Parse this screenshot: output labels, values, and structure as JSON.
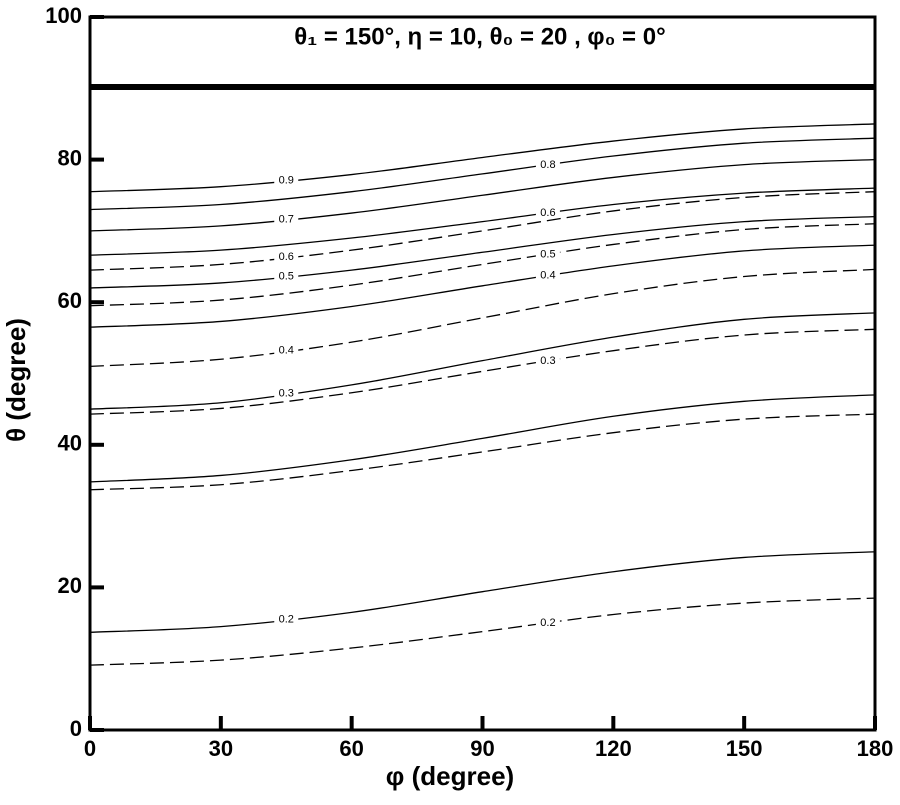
{
  "chart_data": {
    "type": "contour",
    "title": "θ₁ = 150°,  η = 10,  θ₀ = 20 ,  φ₀ = 0°",
    "x_label": "φ (degree)",
    "y_label": "θ (degree)",
    "xlim": [
      0,
      180
    ],
    "xticks": [
      0,
      30,
      60,
      90,
      120,
      150,
      180
    ],
    "ylim": [
      0,
      100
    ],
    "yticks": [
      0,
      20,
      40,
      60,
      80,
      100
    ],
    "x": [
      0,
      30,
      60,
      90,
      120,
      150,
      180
    ],
    "color": "#000000",
    "series": [
      {
        "level": 0.2,
        "style": "solid",
        "values": [
          13.7,
          14.5,
          16.5,
          19.4,
          22.2,
          24.2,
          25
        ]
      },
      {
        "style": "solid",
        "values": [
          34.8,
          35.7,
          37.9,
          40.9,
          44,
          46.1,
          47
        ]
      },
      {
        "level": 0.3,
        "style": "solid",
        "values": [
          45,
          45.9,
          48.4,
          51.8,
          55.1,
          57.6,
          58.5
        ]
      },
      {
        "level": 0.4,
        "style": "solid",
        "values": [
          56.5,
          57.3,
          59.4,
          62.3,
          65.1,
          67.2,
          68
        ]
      },
      {
        "level": 0.5,
        "style": "solid",
        "values": [
          62,
          62.7,
          64.5,
          67,
          69.5,
          71.3,
          72
        ]
      },
      {
        "level": 0.6,
        "style": "solid",
        "values": [
          66.6,
          67.3,
          69,
          71.3,
          73.7,
          75.3,
          76
        ]
      },
      {
        "level": 0.7,
        "style": "solid",
        "values": [
          70,
          70.7,
          72.5,
          75,
          77.5,
          79.3,
          80
        ]
      },
      {
        "level": 0.8,
        "style": "solid",
        "values": [
          73,
          73.7,
          75.5,
          78,
          80.5,
          82.3,
          83
        ]
      },
      {
        "level": 0.9,
        "style": "solid",
        "values": [
          75.5,
          76.2,
          77.9,
          80.3,
          82.6,
          84.3,
          85
        ]
      },
      {
        "level": 0.2,
        "style": "dashed",
        "values": [
          9.1,
          9.8,
          11.5,
          13.8,
          16.2,
          17.8,
          18.5
        ]
      },
      {
        "style": "dashed",
        "values": [
          33.7,
          34.4,
          36.4,
          39,
          41.7,
          43.6,
          44.3
        ]
      },
      {
        "level": 0.3,
        "style": "dashed",
        "values": [
          44.3,
          45.1,
          47.3,
          50.3,
          53.2,
          55.4,
          56.2
        ]
      },
      {
        "level": 0.4,
        "style": "dashed",
        "values": [
          51,
          52,
          54.4,
          57.8,
          61.2,
          63.6,
          64.6
        ]
      },
      {
        "level": 0.5,
        "style": "dashed",
        "values": [
          59.5,
          60.3,
          62.4,
          65.3,
          68.1,
          70.2,
          71
        ]
      },
      {
        "level": 0.6,
        "style": "dashed",
        "values": [
          64.5,
          65.3,
          67.3,
          70,
          72.8,
          74.7,
          75.5
        ]
      }
    ]
  }
}
